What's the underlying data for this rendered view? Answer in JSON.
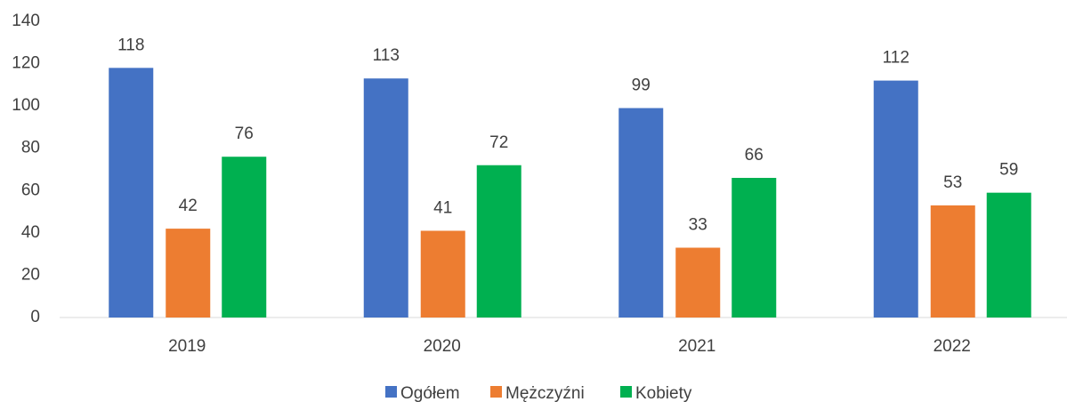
{
  "chart_data": {
    "type": "bar",
    "categories": [
      "2019",
      "2020",
      "2021",
      "2022"
    ],
    "series": [
      {
        "name": "Ogółem",
        "color": "#4472c4",
        "values": [
          118,
          113,
          99,
          112
        ]
      },
      {
        "name": "Mężczyźni",
        "color": "#ed7d31",
        "values": [
          42,
          41,
          33,
          53
        ]
      },
      {
        "name": "Kobiety",
        "color": "#00b050",
        "values": [
          76,
          72,
          66,
          59
        ]
      }
    ],
    "ylim": [
      0,
      140
    ],
    "yticks": [
      0,
      20,
      40,
      60,
      80,
      100,
      120,
      140
    ],
    "grid": false,
    "legend": "bottom"
  }
}
